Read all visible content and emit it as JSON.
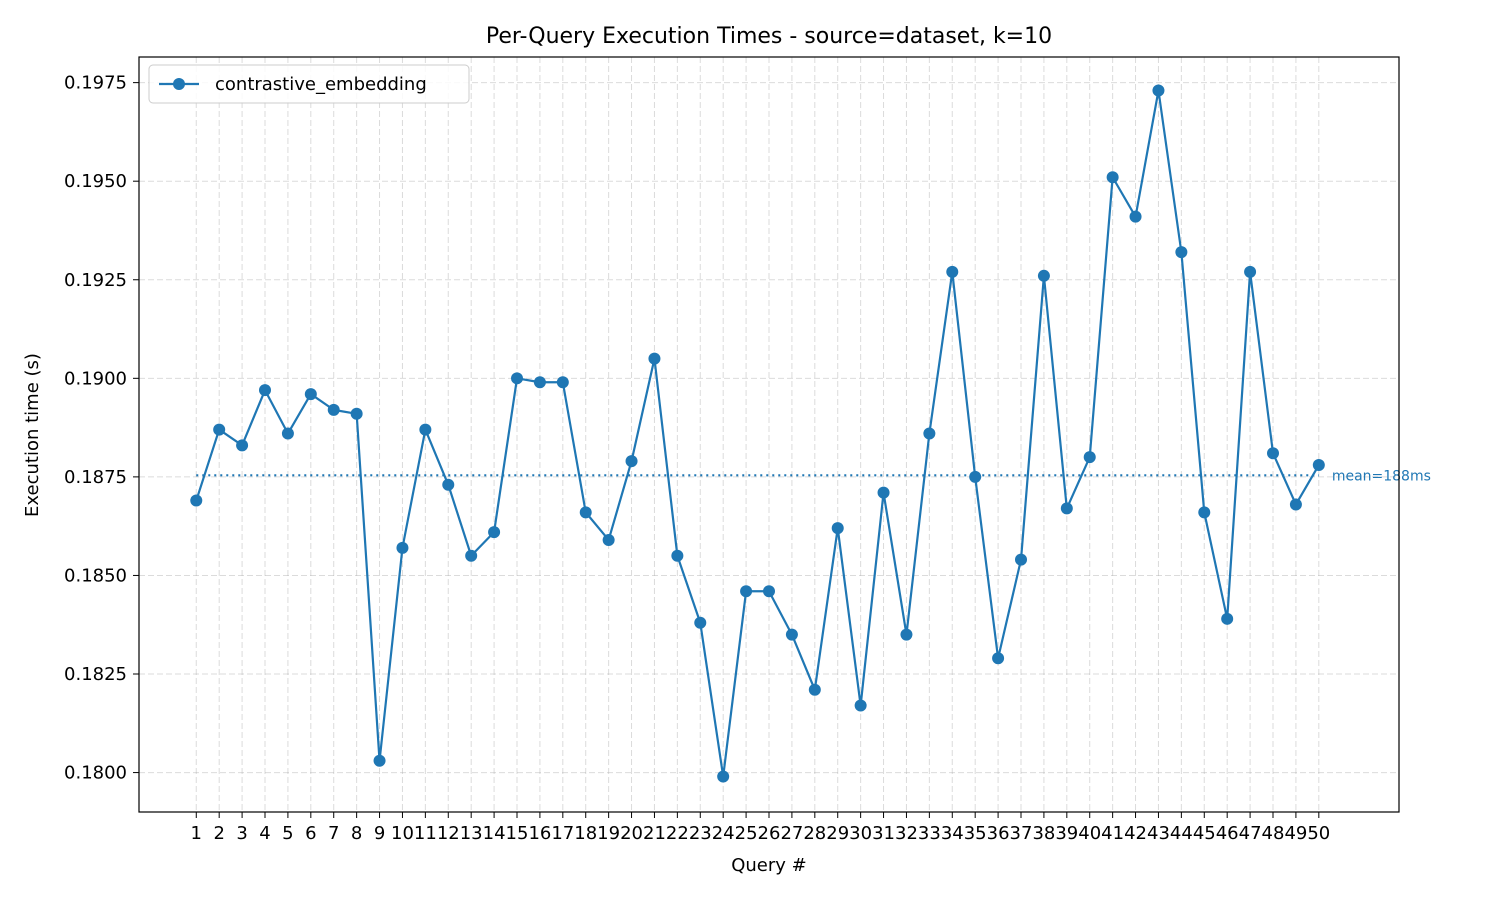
{
  "chart_data": {
    "type": "line",
    "title": "Per-Query Execution Times - source=dataset, k=10",
    "xlabel": "Query #",
    "ylabel": "Execution time (s)",
    "x": [
      1,
      2,
      3,
      4,
      5,
      6,
      7,
      8,
      9,
      10,
      11,
      12,
      13,
      14,
      15,
      16,
      17,
      18,
      19,
      20,
      21,
      22,
      23,
      24,
      25,
      26,
      27,
      28,
      29,
      30,
      31,
      32,
      33,
      34,
      35,
      36,
      37,
      38,
      39,
      40,
      41,
      42,
      43,
      44,
      45,
      46,
      47,
      48,
      49,
      50
    ],
    "xlim": [
      -1.5,
      53.5
    ],
    "ylim": [
      0.179,
      0.19815
    ],
    "yticks": [
      0.18,
      0.1825,
      0.185,
      0.1875,
      0.19,
      0.1925,
      0.195,
      0.1975
    ],
    "ytick_labels": [
      "0.1800",
      "0.1825",
      "0.1850",
      "0.1875",
      "0.1900",
      "0.1925",
      "0.1950",
      "0.1975"
    ],
    "grid": true,
    "legend_position": "top-left",
    "series": [
      {
        "name": "contrastive_embedding",
        "color": "#1f77b4",
        "marker": "circle",
        "values": [
          0.1869,
          0.1887,
          0.1883,
          0.1897,
          0.1886,
          0.1896,
          0.1892,
          0.1891,
          0.1803,
          0.1857,
          0.1887,
          0.1873,
          0.1855,
          0.1861,
          0.19,
          0.1899,
          0.1899,
          0.1866,
          0.1859,
          0.1879,
          0.1905,
          0.1855,
          0.1838,
          0.1799,
          0.1846,
          0.1846,
          0.1835,
          0.1821,
          0.1862,
          0.1817,
          0.1871,
          0.1835,
          0.1886,
          0.1927,
          0.1875,
          0.1829,
          0.1854,
          0.1926,
          0.1867,
          0.188,
          0.1951,
          0.1941,
          0.1973,
          0.1932,
          0.1866,
          0.1839,
          0.1927,
          0.1881,
          0.1868,
          0.1878
        ]
      }
    ],
    "mean_line": {
      "value": 0.18754,
      "label": "mean=188ms",
      "style": "dotted",
      "color": "#1f77b4"
    }
  }
}
